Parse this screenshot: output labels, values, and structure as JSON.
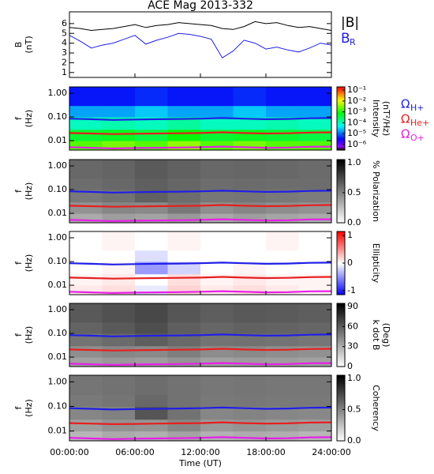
{
  "chart_data": [
    {
      "type": "line",
      "title": "ACE Mag 2013-332",
      "ylabel": [
        "B",
        "(nT)"
      ],
      "xlim": [
        0,
        24
      ],
      "ylim": [
        0.5,
        7.2
      ],
      "yticks": [
        1,
        2,
        3,
        4,
        5,
        6
      ],
      "x": [
        0,
        1,
        2,
        3,
        4,
        5,
        6,
        7,
        8,
        9,
        10,
        11,
        12,
        13,
        14,
        15,
        16,
        17,
        18,
        19,
        20,
        21,
        22,
        23,
        24
      ],
      "series": [
        {
          "name": "|B|",
          "color": "#000000",
          "values": [
            5.6,
            5.5,
            5.3,
            5.4,
            5.5,
            5.7,
            5.9,
            5.6,
            5.8,
            5.9,
            6.1,
            6.0,
            5.9,
            5.8,
            5.5,
            5.4,
            5.7,
            6.2,
            6.0,
            6.1,
            5.8,
            5.6,
            5.7,
            5.5,
            5.3
          ]
        },
        {
          "name": "B",
          "subscript": "R",
          "color": "#1f1fe6",
          "values": [
            4.8,
            4.2,
            3.5,
            3.8,
            4.0,
            4.4,
            4.8,
            3.9,
            4.3,
            4.6,
            5.0,
            4.9,
            4.7,
            4.4,
            2.5,
            3.2,
            4.3,
            4.0,
            3.4,
            3.6,
            3.3,
            3.1,
            3.5,
            4.0,
            3.8
          ]
        }
      ]
    },
    {
      "type": "heatmap",
      "ylabel": [
        "f",
        "(Hz)"
      ],
      "ylog": true,
      "xlim": [
        0,
        24
      ],
      "ylim": [
        0.004,
        1.85
      ],
      "yticks": [
        {
          "value": 0.01,
          "label": "0.01"
        },
        {
          "value": 0.1,
          "label": "0.10"
        },
        {
          "value": 1,
          "label": "1.00"
        }
      ],
      "z_x": [
        0,
        3,
        6,
        9,
        12,
        15,
        18,
        21,
        24
      ],
      "z_y": [
        0.004,
        0.01,
        0.03,
        0.1,
        0.3,
        1.85
      ],
      "z": [
        [
          0.002,
          0.003,
          0.002,
          0.004,
          0.002,
          0.003,
          0.002,
          0.002
        ],
        [
          0.0005,
          0.0006,
          0.0004,
          0.0008,
          0.0005,
          0.0006,
          0.0005,
          0.0004
        ],
        [
          0.0001,
          0.00012,
          0.0001,
          0.00015,
          0.0001,
          0.0001,
          0.00012,
          0.0001
        ],
        [
          2e-05,
          2e-05,
          3e-05,
          2e-05,
          2e-05,
          3e-05,
          2e-05,
          2e-05
        ],
        [
          4e-06,
          4e-06,
          5e-06,
          4e-06,
          4e-06,
          5e-06,
          4e-06,
          4e-06
        ]
      ],
      "colormap": "rainbow",
      "clog": true,
      "clim": [
        3e-07,
        0.2
      ],
      "clabel": [
        "Intensity",
        "(nT²/Hz)"
      ],
      "cticks": [
        {
          "value": 0.1,
          "label": "10⁻¹"
        },
        {
          "value": 0.01,
          "label": "10⁻²"
        },
        {
          "value": 0.001,
          "label": "10⁻³"
        },
        {
          "value": 0.0001,
          "label": "10⁻⁴"
        },
        {
          "value": 1e-05,
          "label": "10⁻⁵"
        },
        {
          "value": 1e-06,
          "label": "10⁻⁶"
        }
      ],
      "x": [
        0,
        2,
        4,
        6,
        8,
        10,
        12,
        14,
        16,
        18,
        20,
        22,
        24
      ],
      "series": [
        {
          "name": "Ω",
          "subscript": "H+",
          "color": "#1f1fe6",
          "values": [
            0.085,
            0.08,
            0.075,
            0.078,
            0.08,
            0.082,
            0.085,
            0.09,
            0.085,
            0.08,
            0.082,
            0.088,
            0.09
          ]
        },
        {
          "name": "Ω",
          "subscript": "He+",
          "color": "#e61f1f",
          "values": [
            0.021,
            0.02,
            0.019,
            0.0195,
            0.02,
            0.0205,
            0.021,
            0.0225,
            0.021,
            0.02,
            0.0205,
            0.022,
            0.0225
          ]
        },
        {
          "name": "Ω",
          "subscript": "O+",
          "color": "#e61fe6",
          "values": [
            0.0053,
            0.005,
            0.0047,
            0.0049,
            0.005,
            0.0051,
            0.0053,
            0.0056,
            0.0053,
            0.005,
            0.0051,
            0.0055,
            0.0056
          ]
        }
      ]
    },
    {
      "type": "heatmap",
      "ylabel": [
        "f",
        "(Hz)"
      ],
      "ylog": true,
      "xlim": [
        0,
        24
      ],
      "ylim": [
        0.004,
        1.85
      ],
      "yticks": [
        {
          "value": 0.01,
          "label": "0.01"
        },
        {
          "value": 0.1,
          "label": "0.10"
        },
        {
          "value": 1,
          "label": "1.00"
        }
      ],
      "z_x": [
        0,
        3,
        6,
        9,
        12,
        15,
        18,
        21,
        24
      ],
      "z_y": [
        0.004,
        0.01,
        0.03,
        0.1,
        0.3,
        1.85
      ],
      "z": [
        [
          0.35,
          0.4,
          0.38,
          0.42,
          0.36,
          0.4,
          0.37,
          0.35
        ],
        [
          0.45,
          0.5,
          0.48,
          0.55,
          0.46,
          0.5,
          0.47,
          0.45
        ],
        [
          0.55,
          0.58,
          0.65,
          0.6,
          0.56,
          0.57,
          0.55,
          0.54
        ],
        [
          0.6,
          0.62,
          0.66,
          0.63,
          0.6,
          0.61,
          0.6,
          0.6
        ],
        [
          0.62,
          0.64,
          0.68,
          0.65,
          0.62,
          0.63,
          0.62,
          0.61
        ]
      ],
      "colormap": "gray",
      "clim": [
        0,
        1.05
      ],
      "clabel": [
        "% Polarization"
      ],
      "cticks": [
        {
          "value": 0,
          "label": "0.0"
        },
        0.5,
        {
          "value": 1,
          "label": "1.0"
        }
      ],
      "x": [
        0,
        2,
        4,
        6,
        8,
        10,
        12,
        14,
        16,
        18,
        20,
        22,
        24
      ],
      "series": [
        {
          "color": "#1f1fe6",
          "values": [
            0.085,
            0.08,
            0.075,
            0.078,
            0.08,
            0.082,
            0.085,
            0.09,
            0.085,
            0.08,
            0.082,
            0.088,
            0.09
          ]
        },
        {
          "color": "#e61f1f",
          "values": [
            0.021,
            0.02,
            0.019,
            0.0195,
            0.02,
            0.0205,
            0.021,
            0.0225,
            0.021,
            0.02,
            0.0205,
            0.022,
            0.0225
          ]
        },
        {
          "color": "#e61fe6",
          "values": [
            0.0053,
            0.005,
            0.0047,
            0.0049,
            0.005,
            0.0051,
            0.0053,
            0.0056,
            0.0053,
            0.005,
            0.0051,
            0.0055,
            0.0056
          ]
        }
      ]
    },
    {
      "type": "heatmap",
      "ylabel": [
        "f",
        "(Hz)"
      ],
      "ylog": true,
      "xlim": [
        0,
        24
      ],
      "ylim": [
        0.004,
        1.85
      ],
      "yticks": [
        {
          "value": 0.01,
          "label": "0.01"
        },
        {
          "value": 0.1,
          "label": "0.10"
        },
        {
          "value": 1,
          "label": "1.00"
        }
      ],
      "z_x": [
        0,
        3,
        6,
        9,
        12,
        15,
        18,
        21,
        24
      ],
      "z_y": [
        0.004,
        0.01,
        0.03,
        0.1,
        0.3,
        1.85
      ],
      "z": [
        [
          0.1,
          0.15,
          -0.1,
          0.2,
          0.1,
          0.15,
          0.1,
          0.05
        ],
        [
          0.05,
          0.1,
          0.0,
          0.15,
          0.05,
          0.1,
          0.05,
          0.05
        ],
        [
          0.0,
          0.05,
          -0.45,
          -0.2,
          0.0,
          0.05,
          0.0,
          0.0
        ],
        [
          0.0,
          0.0,
          -0.15,
          0.0,
          0.0,
          0.0,
          0.0,
          0.0
        ],
        [
          0.0,
          0.05,
          0.0,
          0.05,
          0.0,
          0.0,
          0.05,
          0.0
        ]
      ],
      "colormap": "bwr",
      "clim": [
        -1.15,
        1.15
      ],
      "clabel": [
        "Ellipticity"
      ],
      "cticks": [
        -1,
        0,
        1
      ],
      "x": [
        0,
        2,
        4,
        6,
        8,
        10,
        12,
        14,
        16,
        18,
        20,
        22,
        24
      ],
      "series": [
        {
          "color": "#1f1fe6",
          "values": [
            0.085,
            0.08,
            0.075,
            0.078,
            0.08,
            0.082,
            0.085,
            0.09,
            0.085,
            0.08,
            0.082,
            0.088,
            0.09
          ]
        },
        {
          "color": "#e61f1f",
          "values": [
            0.021,
            0.02,
            0.019,
            0.0195,
            0.02,
            0.0205,
            0.021,
            0.0225,
            0.021,
            0.02,
            0.0205,
            0.022,
            0.0225
          ]
        },
        {
          "color": "#e61fe6",
          "values": [
            0.0053,
            0.005,
            0.0047,
            0.0049,
            0.005,
            0.0051,
            0.0053,
            0.0056,
            0.0053,
            0.005,
            0.0051,
            0.0055,
            0.0056
          ]
        }
      ]
    },
    {
      "type": "heatmap",
      "ylabel": [
        "f",
        "(Hz)"
      ],
      "ylog": true,
      "xlim": [
        0,
        24
      ],
      "ylim": [
        0.004,
        1.85
      ],
      "yticks": [
        {
          "value": 0.01,
          "label": "0.01"
        },
        {
          "value": 0.1,
          "label": "0.10"
        },
        {
          "value": 1,
          "label": "1.00"
        }
      ],
      "z_x": [
        0,
        3,
        6,
        9,
        12,
        15,
        18,
        21,
        24
      ],
      "z_y": [
        0.004,
        0.01,
        0.03,
        0.1,
        0.3,
        1.85
      ],
      "z": [
        [
          35,
          38,
          36,
          40,
          35,
          37,
          36,
          35
        ],
        [
          42,
          45,
          44,
          48,
          43,
          44,
          42,
          41
        ],
        [
          52,
          55,
          60,
          56,
          52,
          53,
          52,
          51
        ],
        [
          58,
          62,
          66,
          60,
          57,
          59,
          58,
          57
        ],
        [
          62,
          65,
          68,
          63,
          60,
          62,
          61,
          60
        ]
      ],
      "colormap": "gray",
      "clim": [
        0,
        95
      ],
      "clabel": [
        "k dot B",
        "(Deg)"
      ],
      "cticks": [
        0,
        30,
        60,
        90
      ],
      "x": [
        0,
        2,
        4,
        6,
        8,
        10,
        12,
        14,
        16,
        18,
        20,
        22,
        24
      ],
      "series": [
        {
          "color": "#1f1fe6",
          "values": [
            0.085,
            0.08,
            0.075,
            0.078,
            0.08,
            0.082,
            0.085,
            0.09,
            0.085,
            0.08,
            0.082,
            0.088,
            0.09
          ]
        },
        {
          "color": "#e61f1f",
          "values": [
            0.021,
            0.02,
            0.019,
            0.0195,
            0.02,
            0.0205,
            0.021,
            0.0225,
            0.021,
            0.02,
            0.0205,
            0.022,
            0.0225
          ]
        },
        {
          "color": "#e61fe6",
          "values": [
            0.0053,
            0.005,
            0.0047,
            0.0049,
            0.005,
            0.0051,
            0.0053,
            0.0056,
            0.0053,
            0.005,
            0.0051,
            0.0055,
            0.0056
          ]
        }
      ]
    },
    {
      "type": "heatmap",
      "ylabel": [
        "f",
        "(Hz)"
      ],
      "ylog": true,
      "xlim": [
        0,
        24
      ],
      "ylim": [
        0.004,
        1.85
      ],
      "yticks": [
        {
          "value": 0.01,
          "label": "0.01"
        },
        {
          "value": 0.1,
          "label": "0.10"
        },
        {
          "value": 1,
          "label": "1.00"
        }
      ],
      "z_x": [
        0,
        3,
        6,
        9,
        12,
        15,
        18,
        21,
        24
      ],
      "z_y": [
        0.004,
        0.01,
        0.03,
        0.1,
        0.3,
        1.85
      ],
      "z": [
        [
          0.3,
          0.35,
          0.33,
          0.38,
          0.32,
          0.34,
          0.33,
          0.3
        ],
        [
          0.4,
          0.45,
          0.44,
          0.5,
          0.42,
          0.44,
          0.42,
          0.4
        ],
        [
          0.5,
          0.52,
          0.7,
          0.58,
          0.5,
          0.51,
          0.5,
          0.49
        ],
        [
          0.55,
          0.57,
          0.62,
          0.58,
          0.55,
          0.56,
          0.55,
          0.55
        ],
        [
          0.57,
          0.58,
          0.6,
          0.58,
          0.56,
          0.57,
          0.56,
          0.56
        ]
      ],
      "colormap": "gray",
      "clim": [
        0,
        1.05
      ],
      "clabel": [
        "Coherency"
      ],
      "cticks": [
        {
          "value": 0,
          "label": "0.0"
        },
        0.5,
        {
          "value": 1,
          "label": "1.0"
        }
      ],
      "x": [
        0,
        2,
        4,
        6,
        8,
        10,
        12,
        14,
        16,
        18,
        20,
        22,
        24
      ],
      "xlabel": "Time (UT)",
      "xticks": [
        {
          "value": 0,
          "label": "00:00:00"
        },
        {
          "value": 6,
          "label": "06:00:00"
        },
        {
          "value": 12,
          "label": "12:00:00"
        },
        {
          "value": 18,
          "label": "18:00:00"
        },
        {
          "value": 24,
          "label": "24:00:00"
        }
      ],
      "series": [
        {
          "color": "#1f1fe6",
          "values": [
            0.085,
            0.08,
            0.075,
            0.078,
            0.08,
            0.082,
            0.085,
            0.09,
            0.085,
            0.08,
            0.082,
            0.088,
            0.09
          ]
        },
        {
          "color": "#e61f1f",
          "values": [
            0.021,
            0.02,
            0.019,
            0.0195,
            0.02,
            0.0205,
            0.021,
            0.0225,
            0.021,
            0.02,
            0.0205,
            0.022,
            0.0225
          ]
        },
        {
          "color": "#e61fe6",
          "values": [
            0.0053,
            0.005,
            0.0047,
            0.0049,
            0.005,
            0.0051,
            0.0053,
            0.0056,
            0.0053,
            0.005,
            0.0051,
            0.0055,
            0.0056
          ]
        }
      ]
    }
  ]
}
